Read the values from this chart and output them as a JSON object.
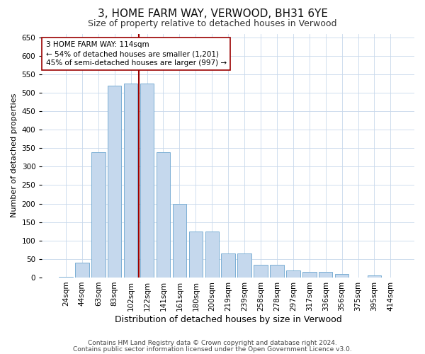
{
  "title1": "3, HOME FARM WAY, VERWOOD, BH31 6YE",
  "title2": "Size of property relative to detached houses in Verwood",
  "xlabel": "Distribution of detached houses by size in Verwood",
  "ylabel": "Number of detached properties",
  "categories": [
    "24sqm",
    "44sqm",
    "63sqm",
    "83sqm",
    "102sqm",
    "122sqm",
    "141sqm",
    "161sqm",
    "180sqm",
    "200sqm",
    "219sqm",
    "239sqm",
    "258sqm",
    "278sqm",
    "297sqm",
    "317sqm",
    "336sqm",
    "356sqm",
    "375sqm",
    "395sqm",
    "414sqm"
  ],
  "values": [
    2,
    40,
    340,
    520,
    525,
    525,
    340,
    200,
    125,
    125,
    65,
    65,
    35,
    35,
    20,
    15,
    15,
    10,
    0,
    5,
    0
  ],
  "bar_color": "#c5d8ed",
  "bar_edge_color": "#7bafd4",
  "vline_x_idx": 4.5,
  "vline_color": "#9b0000",
  "annotation_text": "3 HOME FARM WAY: 114sqm\n← 54% of detached houses are smaller (1,201)\n45% of semi-detached houses are larger (997) →",
  "annotation_box_color": "#ffffff",
  "annotation_box_edge": "#9b0000",
  "ylim": [
    0,
    660
  ],
  "yticks": [
    0,
    50,
    100,
    150,
    200,
    250,
    300,
    350,
    400,
    450,
    500,
    550,
    600,
    650
  ],
  "background_color": "#ffffff",
  "grid_color": "#c8d8eb",
  "footer1": "Contains HM Land Registry data © Crown copyright and database right 2024.",
  "footer2": "Contains public sector information licensed under the Open Government Licence v3.0.",
  "title1_fontsize": 11,
  "title2_fontsize": 9,
  "xlabel_fontsize": 9,
  "ylabel_fontsize": 8,
  "tick_fontsize": 7.5,
  "annotation_fontsize": 7.5,
  "footer_fontsize": 6.5
}
